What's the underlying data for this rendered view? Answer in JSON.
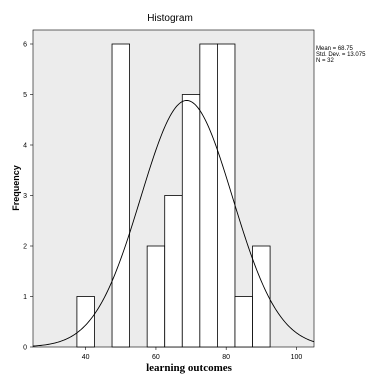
{
  "chart_data": {
    "type": "bar",
    "title": "Histogram",
    "xlabel": "learning outcomes",
    "ylabel": "Frequency",
    "xlim": [
      25,
      105
    ],
    "ylim": [
      0,
      6.5
    ],
    "x_ticks": [
      40,
      60,
      80,
      100
    ],
    "y_ticks": [
      0,
      1,
      2,
      3,
      4,
      5,
      6
    ],
    "bins": [
      {
        "start": 37.5,
        "end": 42.5,
        "count": 1
      },
      {
        "start": 47.5,
        "end": 52.5,
        "count": 6
      },
      {
        "start": 57.5,
        "end": 62.5,
        "count": 2
      },
      {
        "start": 62.5,
        "end": 67.5,
        "count": 3
      },
      {
        "start": 67.5,
        "end": 72.5,
        "count": 5
      },
      {
        "start": 72.5,
        "end": 77.5,
        "count": 6
      },
      {
        "start": 77.5,
        "end": 82.5,
        "count": 6
      },
      {
        "start": 82.5,
        "end": 87.5,
        "count": 1
      },
      {
        "start": 87.5,
        "end": 92.5,
        "count": 2
      }
    ],
    "normal_curve": {
      "mean": 68.75,
      "std_dev": 13.075,
      "n": 32,
      "bin_width": 5
    },
    "stats_text": [
      "Mean = 68.75",
      "Std. Dev. = 13.075",
      "N = 32"
    ],
    "colors": {
      "plot_bg": "#ececec",
      "bar_fill": "#ffffff",
      "bar_stroke": "#000000",
      "curve": "#000000"
    }
  }
}
